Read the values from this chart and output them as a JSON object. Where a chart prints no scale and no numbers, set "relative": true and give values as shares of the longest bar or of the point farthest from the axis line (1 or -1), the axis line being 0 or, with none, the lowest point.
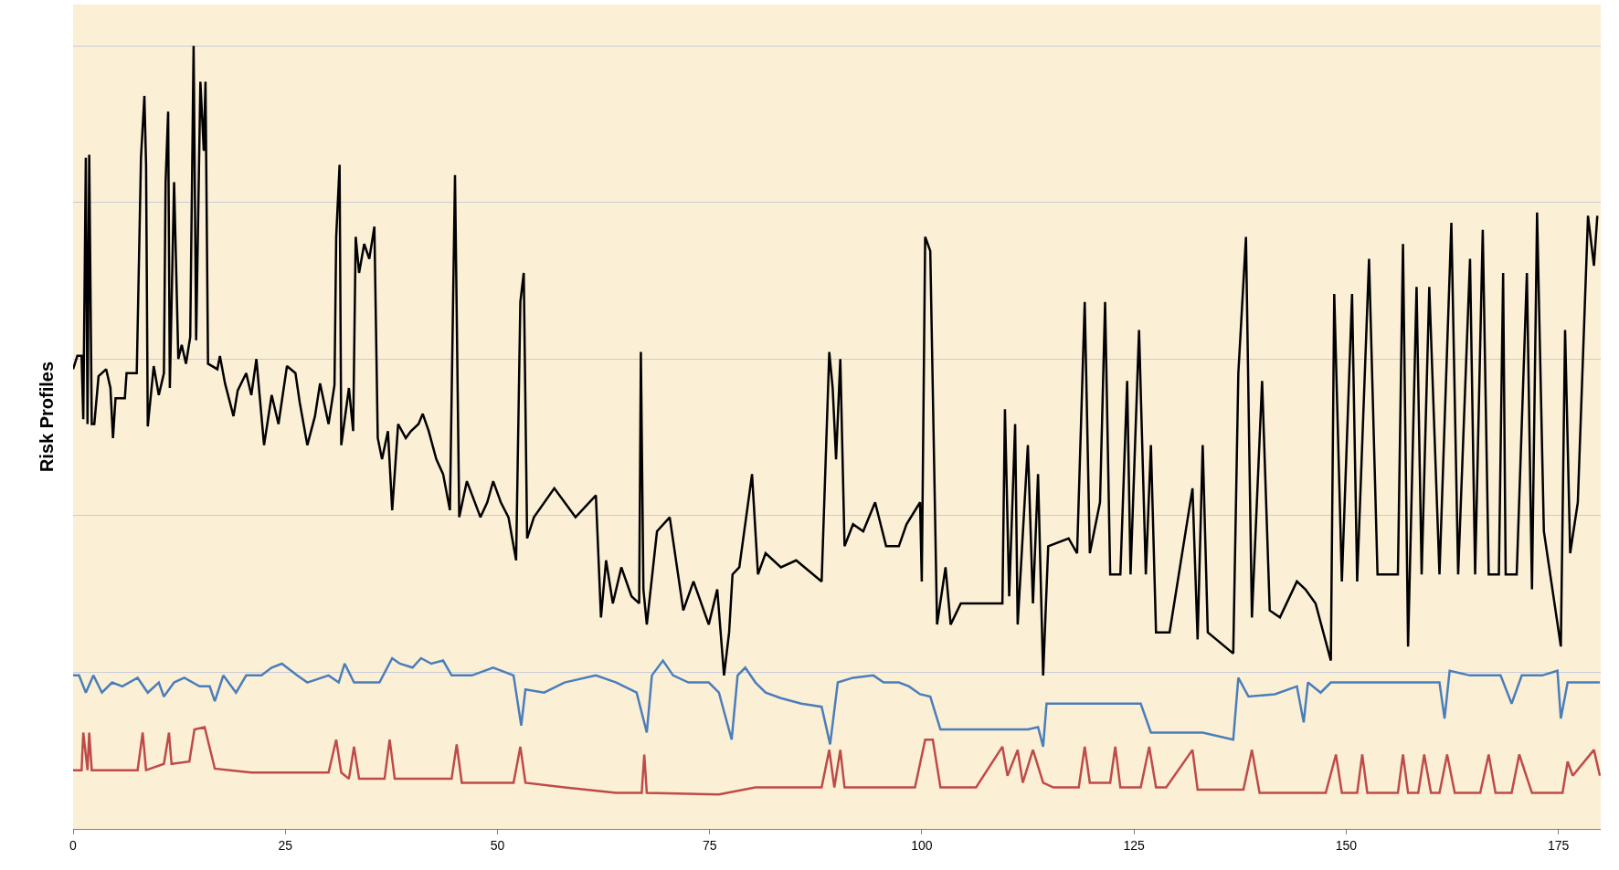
{
  "chart_data": {
    "type": "line",
    "ylabel": "Risk Profiles",
    "relative": true,
    "xlim": [
      0,
      180
    ],
    "xticks": [
      0,
      25,
      50,
      75,
      100,
      125,
      150,
      175
    ],
    "grid": "y",
    "marker": "none",
    "line_style": "solid",
    "series": [
      {
        "color": "#000000",
        "x": [
          0,
          0.5,
          1.0,
          1.2,
          1.5,
          1.7,
          1.9,
          2.2,
          2.5,
          3.0,
          3.9,
          4.4,
          4.7,
          5.0,
          6.1,
          6.3,
          7.5,
          8.0,
          8.4,
          8.6,
          8.8,
          9.5,
          10.1,
          10.7,
          10.9,
          11.2,
          11.4,
          11.9,
          12.4,
          12.8,
          13.3,
          13.8,
          14.2,
          14.5,
          15.0,
          15.4,
          15.6,
          15.9,
          17.0,
          17.3,
          17.9,
          18.9,
          19.4,
          20.4,
          21.0,
          21.6,
          22.5,
          23.4,
          24.2,
          25.2,
          26.2,
          26.7,
          27.6,
          28.5,
          29.1,
          30.1,
          30.8,
          31.0,
          31.4,
          31.6,
          32.5,
          33.0,
          33.3,
          33.7,
          34.3,
          34.9,
          35.5,
          35.9,
          36.4,
          37.1,
          37.6,
          38.3,
          39.2,
          39.8,
          40.7,
          41.2,
          41.9,
          42.8,
          43.6,
          44.4,
          45.0,
          45.5,
          46.4,
          48.0,
          48.8,
          49.5,
          50.4,
          51.3,
          52.2,
          52.7,
          53.1,
          53.5,
          54.3,
          56.7,
          59.2,
          61.6,
          62.2,
          62.8,
          63.6,
          64.6,
          65.8,
          66.7,
          66.9,
          67.2,
          67.6,
          68.8,
          70.3,
          71.9,
          73.1,
          74.9,
          75.9,
          76.7,
          77.3,
          77.7,
          78.5,
          80.0,
          80.7,
          81.6,
          83.4,
          85.2,
          88.2,
          89.1,
          89.5,
          89.9,
          90.4,
          90.9,
          91.9,
          93.1,
          94.5,
          95.8,
          97.3,
          98.2,
          99.8,
          100.0,
          100.4,
          101.0,
          101.8,
          102.8,
          103.4,
          104.6,
          105.8,
          109.5,
          109.8,
          110.3,
          111.0,
          111.3,
          112.5,
          113.1,
          113.7,
          114.3,
          114.9,
          117.3,
          118.3,
          119.2,
          119.8,
          121.0,
          121.6,
          122.2,
          123.4,
          124.2,
          124.6,
          125.6,
          126.4,
          127.0,
          127.6,
          129.2,
          131.9,
          132.5,
          133.1,
          133.7,
          136.7,
          137.3,
          138.2,
          138.9,
          140.1,
          141.0,
          142.2,
          144.2,
          145.2,
          146.4,
          148.2,
          148.6,
          149.5,
          150.7,
          151.3,
          152.7,
          153.7,
          156.1,
          156.7,
          157.3,
          158.3,
          158.9,
          159.8,
          161.0,
          162.4,
          163.2,
          164.6,
          165.2,
          166.1,
          166.8,
          168.0,
          168.5,
          168.8,
          170.1,
          171.3,
          171.9,
          172.5,
          173.3,
          175.3,
          175.8,
          176.4,
          177.3,
          178.5,
          179.2,
          179.6
        ],
        "values": [
          0.587,
          0.604,
          0.604,
          0.523,
          0.857,
          0.517,
          0.861,
          0.517,
          0.517,
          0.578,
          0.587,
          0.563,
          0.499,
          0.55,
          0.55,
          0.582,
          0.582,
          0.857,
          0.936,
          0.848,
          0.514,
          0.591,
          0.554,
          0.582,
          0.826,
          0.916,
          0.563,
          0.826,
          0.6,
          0.618,
          0.594,
          0.628,
          1.0,
          0.624,
          0.954,
          0.866,
          0.954,
          0.594,
          0.587,
          0.604,
          0.569,
          0.527,
          0.56,
          0.582,
          0.554,
          0.6,
          0.49,
          0.554,
          0.517,
          0.591,
          0.582,
          0.545,
          0.49,
          0.527,
          0.569,
          0.517,
          0.567,
          0.756,
          0.848,
          0.49,
          0.563,
          0.508,
          0.756,
          0.71,
          0.747,
          0.728,
          0.769,
          0.499,
          0.472,
          0.508,
          0.407,
          0.517,
          0.499,
          0.508,
          0.517,
          0.53,
          0.508,
          0.472,
          0.453,
          0.407,
          0.835,
          0.398,
          0.444,
          0.398,
          0.417,
          0.444,
          0.417,
          0.398,
          0.343,
          0.673,
          0.71,
          0.371,
          0.398,
          0.435,
          0.398,
          0.426,
          0.27,
          0.343,
          0.288,
          0.334,
          0.297,
          0.288,
          0.609,
          0.306,
          0.261,
          0.38,
          0.398,
          0.279,
          0.316,
          0.261,
          0.306,
          0.196,
          0.251,
          0.325,
          0.334,
          0.453,
          0.325,
          0.352,
          0.334,
          0.343,
          0.316,
          0.609,
          0.563,
          0.472,
          0.6,
          0.361,
          0.389,
          0.38,
          0.417,
          0.361,
          0.361,
          0.389,
          0.417,
          0.316,
          0.756,
          0.738,
          0.261,
          0.334,
          0.261,
          0.288,
          0.288,
          0.288,
          0.536,
          0.297,
          0.517,
          0.261,
          0.49,
          0.288,
          0.453,
          0.196,
          0.361,
          0.371,
          0.352,
          0.673,
          0.352,
          0.417,
          0.673,
          0.325,
          0.325,
          0.572,
          0.325,
          0.637,
          0.325,
          0.49,
          0.251,
          0.251,
          0.435,
          0.242,
          0.49,
          0.251,
          0.224,
          0.582,
          0.756,
          0.27,
          0.572,
          0.279,
          0.27,
          0.316,
          0.306,
          0.288,
          0.215,
          0.683,
          0.316,
          0.683,
          0.316,
          0.728,
          0.325,
          0.325,
          0.747,
          0.233,
          0.692,
          0.325,
          0.692,
          0.325,
          0.774,
          0.325,
          0.728,
          0.325,
          0.765,
          0.325,
          0.325,
          0.71,
          0.325,
          0.325,
          0.71,
          0.306,
          0.787,
          0.38,
          0.233,
          0.637,
          0.352,
          0.417,
          0.783,
          0.719,
          0.783
        ]
      },
      {
        "color": "#4a7ebb",
        "x": [
          0,
          0.7,
          1.5,
          2.4,
          3.4,
          4.6,
          5.8,
          7.6,
          8.8,
          10.1,
          10.7,
          11.9,
          13.1,
          14.9,
          16.1,
          16.7,
          17.7,
          19.2,
          20.4,
          22.2,
          23.4,
          24.6,
          26.4,
          27.6,
          30.1,
          31.3,
          32.0,
          33.1,
          36.1,
          37.6,
          38.5,
          40.0,
          41.0,
          42.2,
          43.6,
          44.6,
          47.0,
          49.5,
          51.9,
          52.8,
          53.3,
          55.5,
          57.9,
          61.6,
          64.0,
          66.4,
          67.6,
          68.2,
          69.5,
          70.7,
          72.5,
          74.9,
          76.1,
          77.6,
          78.3,
          79.2,
          80.4,
          81.6,
          83.4,
          85.8,
          88.2,
          89.2,
          90.1,
          91.9,
          94.3,
          95.5,
          97.3,
          98.5,
          99.8,
          101.0,
          102.2,
          104.6,
          107.0,
          112.5,
          113.7,
          114.3,
          114.7,
          119.8,
          125.8,
          127.0,
          133.1,
          136.7,
          137.3,
          138.5,
          141.6,
          144.2,
          145.0,
          145.5,
          147.0,
          148.2,
          153.7,
          161.0,
          161.6,
          162.2,
          164.6,
          168.2,
          169.5,
          170.7,
          173.1,
          174.9,
          175.3,
          176.1,
          179.9
        ],
        "values": [
          0.196,
          0.196,
          0.174,
          0.196,
          0.174,
          0.187,
          0.182,
          0.193,
          0.174,
          0.187,
          0.169,
          0.187,
          0.193,
          0.182,
          0.182,
          0.163,
          0.196,
          0.174,
          0.196,
          0.196,
          0.206,
          0.211,
          0.196,
          0.187,
          0.196,
          0.187,
          0.211,
          0.187,
          0.187,
          0.218,
          0.211,
          0.206,
          0.218,
          0.211,
          0.215,
          0.196,
          0.196,
          0.206,
          0.196,
          0.132,
          0.178,
          0.174,
          0.187,
          0.196,
          0.187,
          0.174,
          0.123,
          0.196,
          0.215,
          0.196,
          0.187,
          0.187,
          0.174,
          0.114,
          0.196,
          0.206,
          0.187,
          0.174,
          0.167,
          0.16,
          0.156,
          0.108,
          0.187,
          0.193,
          0.196,
          0.187,
          0.187,
          0.182,
          0.172,
          0.169,
          0.127,
          0.127,
          0.127,
          0.127,
          0.13,
          0.105,
          0.16,
          0.16,
          0.16,
          0.123,
          0.123,
          0.114,
          0.193,
          0.169,
          0.172,
          0.182,
          0.136,
          0.187,
          0.174,
          0.187,
          0.187,
          0.187,
          0.141,
          0.202,
          0.196,
          0.196,
          0.16,
          0.196,
          0.196,
          0.202,
          0.141,
          0.187,
          0.187
        ]
      },
      {
        "color": "#be4b48",
        "x": [
          0,
          1.0,
          1.2,
          1.7,
          1.9,
          2.2,
          7.6,
          8.2,
          8.6,
          10.7,
          11.3,
          11.6,
          13.7,
          14.3,
          15.5,
          16.7,
          21.0,
          30.1,
          31.0,
          31.6,
          32.5,
          33.1,
          33.7,
          36.7,
          37.3,
          37.9,
          44.6,
          45.2,
          45.8,
          51.9,
          52.7,
          53.3,
          57.9,
          64.0,
          67.0,
          67.3,
          67.6,
          76.1,
          80.4,
          88.2,
          89.1,
          89.7,
          90.4,
          90.9,
          99.2,
          100.4,
          101.3,
          102.2,
          106.4,
          109.5,
          110.1,
          111.3,
          111.9,
          113.1,
          114.3,
          115.5,
          118.5,
          119.2,
          119.8,
          122.2,
          122.8,
          123.4,
          125.8,
          126.8,
          127.6,
          128.8,
          131.9,
          132.5,
          137.9,
          138.9,
          139.8,
          147.6,
          148.8,
          149.5,
          151.3,
          151.9,
          152.5,
          156.1,
          156.7,
          157.3,
          158.5,
          159.2,
          160.0,
          161.0,
          161.9,
          162.8,
          165.8,
          166.8,
          167.6,
          169.5,
          170.4,
          171.9,
          175.5,
          176.1,
          176.7,
          179.2,
          179.9
        ],
        "values": [
          0.075,
          0.075,
          0.123,
          0.075,
          0.123,
          0.075,
          0.075,
          0.123,
          0.075,
          0.083,
          0.123,
          0.083,
          0.086,
          0.127,
          0.13,
          0.077,
          0.072,
          0.072,
          0.114,
          0.072,
          0.064,
          0.105,
          0.064,
          0.064,
          0.114,
          0.064,
          0.064,
          0.108,
          0.059,
          0.059,
          0.105,
          0.059,
          0.053,
          0.046,
          0.046,
          0.095,
          0.046,
          0.044,
          0.053,
          0.053,
          0.101,
          0.053,
          0.101,
          0.053,
          0.053,
          0.114,
          0.114,
          0.053,
          0.053,
          0.105,
          0.068,
          0.101,
          0.059,
          0.101,
          0.059,
          0.053,
          0.053,
          0.105,
          0.059,
          0.059,
          0.105,
          0.053,
          0.053,
          0.105,
          0.053,
          0.053,
          0.101,
          0.05,
          0.05,
          0.101,
          0.046,
          0.046,
          0.095,
          0.046,
          0.046,
          0.095,
          0.046,
          0.046,
          0.095,
          0.046,
          0.046,
          0.095,
          0.046,
          0.046,
          0.095,
          0.046,
          0.046,
          0.095,
          0.046,
          0.046,
          0.095,
          0.046,
          0.046,
          0.086,
          0.068,
          0.101,
          0.068
        ]
      }
    ]
  }
}
